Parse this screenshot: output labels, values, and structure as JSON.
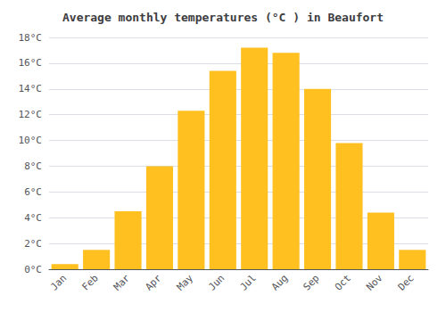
{
  "chart_data": {
    "type": "bar",
    "title": "Average monthly temperatures (°C ) in Beaufort",
    "categories": [
      "Jan",
      "Feb",
      "Mar",
      "Apr",
      "May",
      "Jun",
      "Jul",
      "Aug",
      "Sep",
      "Oct",
      "Nov",
      "Dec"
    ],
    "values": [
      0.4,
      1.5,
      4.5,
      8.0,
      12.3,
      15.4,
      17.2,
      16.8,
      14.0,
      9.8,
      4.4,
      1.5
    ],
    "color": "#FFC020",
    "ylim": [
      0,
      18
    ],
    "yticks": [
      {
        "value": 0,
        "label": "0°C"
      },
      {
        "value": 2,
        "label": "2°C"
      },
      {
        "value": 4,
        "label": "4°C"
      },
      {
        "value": 6,
        "label": "6°C"
      },
      {
        "value": 8,
        "label": "8°C"
      },
      {
        "value": 10,
        "label": "10°C"
      },
      {
        "value": 12,
        "label": "12°C"
      },
      {
        "value": 14,
        "label": "14°C"
      },
      {
        "value": 16,
        "label": "16°C"
      },
      {
        "value": 18,
        "label": "18°C"
      }
    ],
    "grid": true
  }
}
